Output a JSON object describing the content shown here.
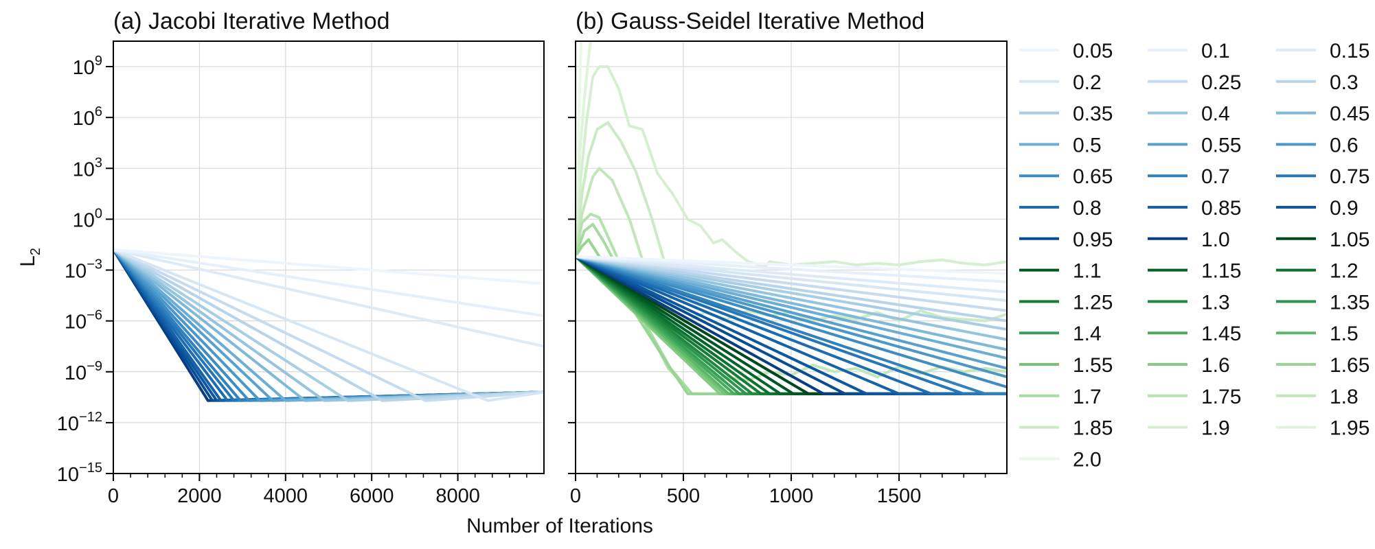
{
  "chart_data": [
    {
      "type": "line",
      "title": "(a) Jacobi Iterative Method",
      "xlim": [
        0,
        10000
      ],
      "ylim": [
        -15,
        10.5
      ],
      "y_scale": "log",
      "x_ticks": [
        0,
        2000,
        4000,
        6000,
        8000
      ],
      "y_ticks": [
        9,
        6,
        3,
        0,
        -3,
        -6,
        -9,
        -12,
        -15
      ],
      "grid": true,
      "series": [
        {
          "name": "0.05",
          "x": [
            0,
            10000
          ],
          "y": [
            -1.8,
            -3.8
          ]
        },
        {
          "name": "0.1",
          "x": [
            0,
            10000
          ],
          "y": [
            -1.8,
            -5.7
          ]
        },
        {
          "name": "0.15",
          "x": [
            0,
            10000
          ],
          "y": [
            -1.8,
            -7.5
          ]
        },
        {
          "name": "0.2",
          "x": [
            0,
            8700,
            10000
          ],
          "y": [
            -1.8,
            -10.7,
            -10.2
          ]
        },
        {
          "name": "0.25",
          "x": [
            0,
            7250,
            10000
          ],
          "y": [
            -1.8,
            -10.7,
            -10.2
          ]
        },
        {
          "name": "0.3",
          "x": [
            0,
            6250,
            10000
          ],
          "y": [
            -1.8,
            -10.7,
            -10.2
          ]
        },
        {
          "name": "0.35",
          "x": [
            0,
            5450,
            10000
          ],
          "y": [
            -1.8,
            -10.7,
            -10.2
          ]
        },
        {
          "name": "0.4",
          "x": [
            0,
            4900,
            10000
          ],
          "y": [
            -1.8,
            -10.7,
            -10.2
          ]
        },
        {
          "name": "0.45",
          "x": [
            0,
            4450,
            10000
          ],
          "y": [
            -1.8,
            -10.7,
            -10.2
          ]
        },
        {
          "name": "0.5",
          "x": [
            0,
            4000,
            10000
          ],
          "y": [
            -1.8,
            -10.7,
            -10.2
          ]
        },
        {
          "name": "0.55",
          "x": [
            0,
            3700,
            10000
          ],
          "y": [
            -1.8,
            -10.7,
            -10.2
          ]
        },
        {
          "name": "0.6",
          "x": [
            0,
            3400,
            10000
          ],
          "y": [
            -1.8,
            -10.7,
            -10.2
          ]
        },
        {
          "name": "0.65",
          "x": [
            0,
            3150,
            10000
          ],
          "y": [
            -1.8,
            -10.7,
            -10.2
          ]
        },
        {
          "name": "0.7",
          "x": [
            0,
            2950,
            10000
          ],
          "y": [
            -1.8,
            -10.7,
            -10.2
          ]
        },
        {
          "name": "0.75",
          "x": [
            0,
            2800,
            10000
          ],
          "y": [
            -1.8,
            -10.7,
            -10.2
          ]
        },
        {
          "name": "0.8",
          "x": [
            0,
            2650,
            10000
          ],
          "y": [
            -1.8,
            -10.7,
            -10.2
          ]
        },
        {
          "name": "0.85",
          "x": [
            0,
            2500,
            10000
          ],
          "y": [
            -1.8,
            -10.7,
            -10.2
          ]
        },
        {
          "name": "0.9",
          "x": [
            0,
            2400,
            10000
          ],
          "y": [
            -1.8,
            -10.7,
            -10.2
          ]
        },
        {
          "name": "0.95",
          "x": [
            0,
            2300,
            10000
          ],
          "y": [
            -1.8,
            -10.7,
            -10.2
          ]
        },
        {
          "name": "1.0",
          "x": [
            0,
            2200,
            10000
          ],
          "y": [
            -1.8,
            -10.7,
            -10.2
          ]
        }
      ]
    },
    {
      "type": "line",
      "title": "(b) Gauss-Seidel Iterative Method",
      "xlim": [
        0,
        2000
      ],
      "ylim": [
        -15,
        10.5
      ],
      "y_scale": "log",
      "x_ticks": [
        0,
        500,
        1000,
        1500
      ],
      "grid": true,
      "series": [
        {
          "name": "0.05",
          "x": [
            0,
            2000
          ],
          "y": [
            -2.2,
            -3.2
          ]
        },
        {
          "name": "0.1",
          "x": [
            0,
            2000
          ],
          "y": [
            -2.2,
            -3.7
          ]
        },
        {
          "name": "0.15",
          "x": [
            0,
            2000
          ],
          "y": [
            -2.2,
            -4.3
          ]
        },
        {
          "name": "0.2",
          "x": [
            0,
            2000
          ],
          "y": [
            -2.2,
            -4.8
          ]
        },
        {
          "name": "0.25",
          "x": [
            0,
            2000
          ],
          "y": [
            -2.2,
            -5.4
          ]
        },
        {
          "name": "0.3",
          "x": [
            0,
            2000
          ],
          "y": [
            -2.2,
            -6.0
          ]
        },
        {
          "name": "0.35",
          "x": [
            0,
            2000
          ],
          "y": [
            -2.2,
            -6.5
          ]
        },
        {
          "name": "0.4",
          "x": [
            0,
            2000
          ],
          "y": [
            -2.2,
            -7.1
          ]
        },
        {
          "name": "0.45",
          "x": [
            0,
            2000
          ],
          "y": [
            -2.2,
            -7.7
          ]
        },
        {
          "name": "0.5",
          "x": [
            0,
            2000
          ],
          "y": [
            -2.2,
            -8.2
          ]
        },
        {
          "name": "0.55",
          "x": [
            0,
            2000
          ],
          "y": [
            -2.2,
            -8.8
          ]
        },
        {
          "name": "0.6",
          "x": [
            0,
            2000
          ],
          "y": [
            -2.2,
            -9.3
          ]
        },
        {
          "name": "0.65",
          "x": [
            0,
            2000
          ],
          "y": [
            -2.2,
            -9.9
          ]
        },
        {
          "name": "0.7",
          "x": [
            0,
            1900,
            2000
          ],
          "y": [
            -2.2,
            -10.3,
            -10.3
          ]
        },
        {
          "name": "0.75",
          "x": [
            0,
            1800,
            2000
          ],
          "y": [
            -2.2,
            -10.3,
            -10.3
          ]
        },
        {
          "name": "0.8",
          "x": [
            0,
            1650,
            2000
          ],
          "y": [
            -2.2,
            -10.3,
            -10.3
          ]
        },
        {
          "name": "0.85",
          "x": [
            0,
            1500,
            2000
          ],
          "y": [
            -2.2,
            -10.3,
            -10.3
          ]
        },
        {
          "name": "0.9",
          "x": [
            0,
            1350,
            2000
          ],
          "y": [
            -2.2,
            -10.3,
            -10.3
          ]
        },
        {
          "name": "0.95",
          "x": [
            0,
            1250,
            2000
          ],
          "y": [
            -2.2,
            -10.3,
            -10.3
          ]
        },
        {
          "name": "1.0",
          "x": [
            0,
            1150,
            2000
          ],
          "y": [
            -2.2,
            -10.3,
            -10.3
          ]
        },
        {
          "name": "1.05",
          "x": [
            0,
            1080,
            2000
          ],
          "y": [
            -2.2,
            -10.3,
            -10.3
          ]
        },
        {
          "name": "1.1",
          "x": [
            0,
            1010,
            2000
          ],
          "y": [
            -2.2,
            -10.3,
            -10.3
          ]
        },
        {
          "name": "1.15",
          "x": [
            0,
            950,
            2000
          ],
          "y": [
            -2.2,
            -10.3,
            -10.3
          ]
        },
        {
          "name": "1.2",
          "x": [
            0,
            900,
            2000
          ],
          "y": [
            -2.2,
            -10.3,
            -10.3
          ]
        },
        {
          "name": "1.25",
          "x": [
            0,
            860,
            2000
          ],
          "y": [
            -2.2,
            -10.3,
            -10.3
          ]
        },
        {
          "name": "1.3",
          "x": [
            0,
            820,
            2000
          ],
          "y": [
            -2.2,
            -10.3,
            -10.3
          ]
        },
        {
          "name": "1.35",
          "x": [
            0,
            790,
            2000
          ],
          "y": [
            -2.2,
            -10.3,
            -10.3
          ]
        },
        {
          "name": "1.4",
          "x": [
            0,
            760,
            2000
          ],
          "y": [
            -2.2,
            -10.3,
            -10.3
          ]
        },
        {
          "name": "1.45",
          "x": [
            0,
            735,
            2000
          ],
          "y": [
            -2.2,
            -10.3,
            -10.3
          ]
        },
        {
          "name": "1.5",
          "x": [
            0,
            710,
            2000
          ],
          "y": [
            -2.2,
            -10.3,
            -10.3
          ]
        },
        {
          "name": "1.55",
          "x": [
            0,
            690,
            2000
          ],
          "y": [
            -2.2,
            -10.3,
            -10.3
          ]
        },
        {
          "name": "1.6",
          "x": [
            0,
            670,
            2000
          ],
          "y": [
            -2.2,
            -10.3,
            -10.3
          ]
        },
        {
          "name": "1.65",
          "x": [
            0,
            30,
            60,
            100,
            200,
            330,
            440,
            520,
            600,
            700,
            2000
          ],
          "y": [
            -2.2,
            -1.6,
            -1.2,
            -2.0,
            -4.0,
            -6.6,
            -8.8,
            -10.3,
            -10.3,
            -10.3,
            -10.3
          ]
        },
        {
          "name": "1.7",
          "x": [
            0,
            40,
            80,
            130,
            230,
            330,
            440,
            540,
            660,
            2000
          ],
          "y": [
            -2.2,
            -0.7,
            -0.3,
            -1.3,
            -3.7,
            -6.3,
            -8.8,
            -10.3,
            -10.3,
            -10.3
          ]
        },
        {
          "name": "1.75",
          "x": [
            0,
            30,
            70,
            110,
            160,
            240,
            330,
            430,
            540,
            640,
            2000
          ],
          "y": [
            -2.2,
            -0.2,
            0.3,
            0.1,
            -1.3,
            -3.6,
            -6.3,
            -8.8,
            -10.3,
            -10.3,
            -10.3
          ]
        },
        {
          "name": "1.8",
          "x": [
            0,
            30,
            80,
            110,
            170,
            250,
            320,
            400,
            460,
            560,
            660,
            800,
            900,
            1000,
            1100,
            1200,
            1300,
            1400,
            1500,
            1600,
            1700,
            1800,
            1900,
            2000
          ],
          "y": [
            -2.2,
            0.3,
            2.5,
            3.0,
            2.3,
            0.0,
            -2.8,
            -5.7,
            -6.9,
            -8.6,
            -9.3,
            -9.5,
            -9.0,
            -9.2,
            -8.6,
            -9.0,
            -8.8,
            -9.3,
            -8.7,
            -9.1,
            -8.7,
            -9.0,
            -8.8,
            -9.0
          ]
        },
        {
          "name": "1.85",
          "x": [
            0,
            30,
            60,
            100,
            150,
            210,
            280,
            350,
            410,
            450,
            500,
            600,
            700,
            800,
            900,
            1000,
            1100,
            1200,
            1300,
            1400,
            1500,
            1600,
            1700,
            1800,
            1900,
            2000
          ],
          "y": [
            -2.2,
            1.5,
            3.7,
            5.3,
            5.7,
            4.6,
            2.8,
            0.2,
            -2.4,
            -5.5,
            -6.1,
            -5.5,
            -5.9,
            -5.4,
            -5.7,
            -5.5,
            -6.0,
            -5.7,
            -5.9,
            -5.5,
            -6.0,
            -5.4,
            -5.8,
            -5.9,
            -6.0,
            -5.6
          ]
        },
        {
          "name": "1.9",
          "x": [
            0,
            25,
            50,
            80,
            110,
            150,
            200,
            250,
            310,
            380,
            450,
            520,
            580,
            640,
            680,
            740,
            800,
            880,
            900,
            1000,
            1100,
            1200,
            1300,
            1400,
            1500,
            1600,
            1700,
            1800,
            1900,
            2000
          ],
          "y": [
            -2.2,
            2.5,
            5.7,
            8.4,
            9.0,
            9.0,
            7.7,
            5.5,
            5.3,
            2.7,
            1.5,
            0.0,
            -0.4,
            -1.4,
            -1.2,
            -1.9,
            -2.5,
            -2.8,
            -2.5,
            -2.7,
            -2.6,
            -2.5,
            -2.7,
            -2.6,
            -2.7,
            -2.5,
            -2.4,
            -2.6,
            -2.7,
            -2.5
          ]
        },
        {
          "name": "1.95",
          "x": [
            0,
            20,
            40,
            60,
            80
          ],
          "y": [
            -2.2,
            4.0,
            7.0,
            9.5,
            11.5
          ]
        },
        {
          "name": "2.0",
          "x": [
            0,
            15,
            30
          ],
          "y": [
            -2.2,
            6.0,
            12.0
          ]
        }
      ]
    }
  ],
  "shared": {
    "xlabel": "Number of Iterations",
    "ylabel": "L",
    "ylabel_subscript": "2",
    "y_tick_base": "10"
  },
  "legend": {
    "placement": "right",
    "columns": 3,
    "entries": [
      {
        "label": "0.05",
        "color": "#eef5fc"
      },
      {
        "label": "0.1",
        "color": "#e6f0fa"
      },
      {
        "label": "0.15",
        "color": "#deebf7"
      },
      {
        "label": "0.2",
        "color": "#d6e6f4"
      },
      {
        "label": "0.25",
        "color": "#c6dbef"
      },
      {
        "label": "0.3",
        "color": "#b7d4ea"
      },
      {
        "label": "0.35",
        "color": "#a6cee4"
      },
      {
        "label": "0.4",
        "color": "#94c4df"
      },
      {
        "label": "0.45",
        "color": "#7fb9da"
      },
      {
        "label": "0.5",
        "color": "#6aaed6"
      },
      {
        "label": "0.55",
        "color": "#58a1cf"
      },
      {
        "label": "0.6",
        "color": "#4a98c9"
      },
      {
        "label": "0.65",
        "color": "#3d8dc4"
      },
      {
        "label": "0.7",
        "color": "#3181bd"
      },
      {
        "label": "0.75",
        "color": "#2777b8"
      },
      {
        "label": "0.8",
        "color": "#1c6cb1"
      },
      {
        "label": "0.85",
        "color": "#1562a9"
      },
      {
        "label": "0.9",
        "color": "#0d57a1"
      },
      {
        "label": "0.95",
        "color": "#084c94"
      },
      {
        "label": "1.0",
        "color": "#083d7f"
      },
      {
        "label": "1.05",
        "color": "#00471c"
      },
      {
        "label": "1.1",
        "color": "#005522"
      },
      {
        "label": "1.15",
        "color": "#036429"
      },
      {
        "label": "1.2",
        "color": "#0d7230"
      },
      {
        "label": "1.25",
        "color": "#177d36"
      },
      {
        "label": "1.3",
        "color": "#22883e"
      },
      {
        "label": "1.35",
        "color": "#2d954d"
      },
      {
        "label": "1.4",
        "color": "#37a055"
      },
      {
        "label": "1.45",
        "color": "#48ab5d"
      },
      {
        "label": "1.5",
        "color": "#5db86a"
      },
      {
        "label": "1.55",
        "color": "#73c378"
      },
      {
        "label": "1.6",
        "color": "#84cc83"
      },
      {
        "label": "1.65",
        "color": "#98d594"
      },
      {
        "label": "1.7",
        "color": "#a6db9f"
      },
      {
        "label": "1.75",
        "color": "#b4e1ad"
      },
      {
        "label": "1.8",
        "color": "#c1e6ba"
      },
      {
        "label": "1.85",
        "color": "#cbebc5"
      },
      {
        "label": "1.9",
        "color": "#d6efd0"
      },
      {
        "label": "1.95",
        "color": "#e0f3db"
      },
      {
        "label": "2.0",
        "color": "#ebf7e7"
      }
    ]
  }
}
